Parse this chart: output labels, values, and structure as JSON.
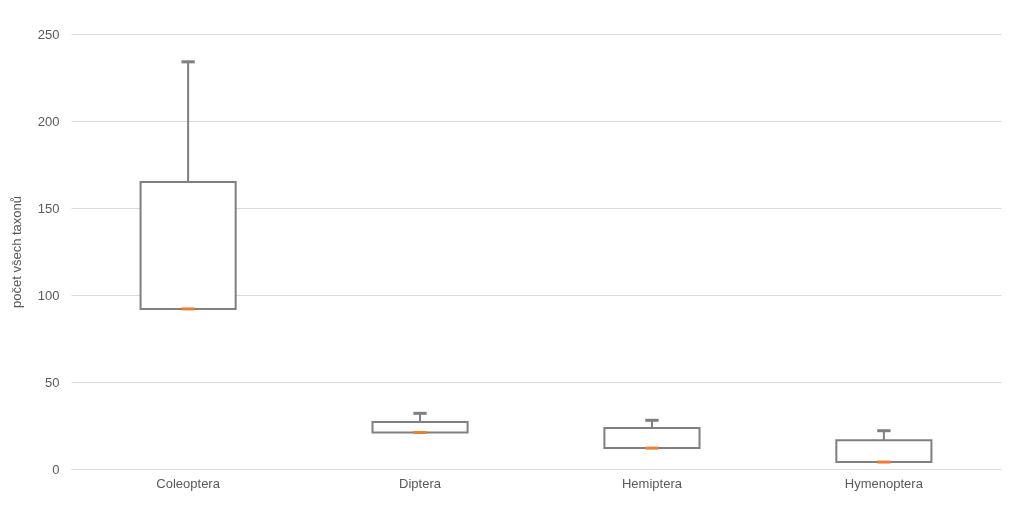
{
  "chart_data": {
    "type": "box",
    "ylabel": "počet všech taxonů",
    "categories": [
      "Coleoptera",
      "Diptera",
      "Hemiptera",
      "Hymenoptera"
    ],
    "ylim": [
      0,
      250
    ],
    "yticks": [
      0,
      50,
      100,
      150,
      200,
      250
    ],
    "grid": "y",
    "series": [
      {
        "color": "#7f7f7f",
        "boxes": [
          {
            "low": 92,
            "q1": 92,
            "median": 92,
            "q3": 165,
            "high": 234
          },
          {
            "low": 21,
            "q1": 21,
            "median": 21,
            "q3": 27,
            "high": 32
          },
          {
            "low": 12,
            "q1": 12,
            "median": 12,
            "q3": 23.5,
            "high": 28
          },
          {
            "low": 4,
            "q1": 4,
            "median": 4,
            "q3": 16.5,
            "high": 22
          }
        ]
      }
    ]
  }
}
